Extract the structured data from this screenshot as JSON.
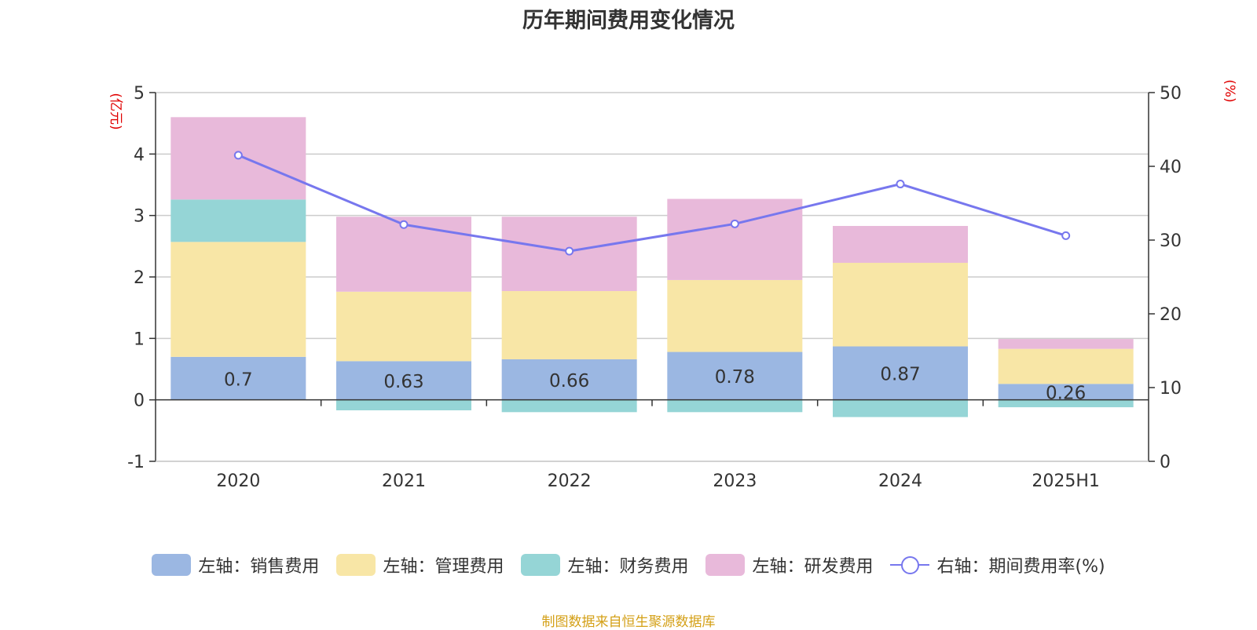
{
  "title": "历年期间费用变化情况",
  "source": "制图数据来自恒生聚源数据库",
  "chart_data": {
    "type": "bar",
    "stacked": true,
    "categories": [
      "2020",
      "2021",
      "2022",
      "2023",
      "2024",
      "2025H1"
    ],
    "left_axis": {
      "unit": "(亿元)",
      "ylim": [
        -1,
        5
      ],
      "ticks": [
        -1,
        0,
        1,
        2,
        3,
        4,
        5
      ]
    },
    "right_axis": {
      "unit": "(%)",
      "ylim": [
        0,
        50
      ],
      "ticks": [
        0,
        10,
        20,
        30,
        40,
        50
      ]
    },
    "grid": true,
    "legend_position": "bottom",
    "series": [
      {
        "name": "左轴：销售费用",
        "type": "bar",
        "axis": "left",
        "color": "#9bb7e2",
        "values": [
          0.7,
          0.63,
          0.66,
          0.78,
          0.87,
          0.26
        ],
        "show_labels": true
      },
      {
        "name": "左轴：管理费用",
        "type": "bar",
        "axis": "left",
        "color": "#f8e6a6",
        "values": [
          1.87,
          1.13,
          1.11,
          1.17,
          1.36,
          0.57
        ]
      },
      {
        "name": "左轴：财务费用",
        "type": "bar",
        "axis": "left",
        "color": "#95d5d6",
        "values": [
          0.69,
          -0.17,
          -0.2,
          -0.2,
          -0.28,
          -0.12
        ]
      },
      {
        "name": "左轴：研发费用",
        "type": "bar",
        "axis": "left",
        "color": "#e8b9da",
        "values": [
          1.34,
          1.22,
          1.21,
          1.32,
          0.6,
          0.16
        ]
      },
      {
        "name": "右轴：期间费用率(%)",
        "type": "line",
        "axis": "right",
        "color": "#7777ee",
        "values": [
          41.5,
          32.1,
          28.5,
          32.2,
          37.6,
          30.6
        ]
      }
    ]
  }
}
